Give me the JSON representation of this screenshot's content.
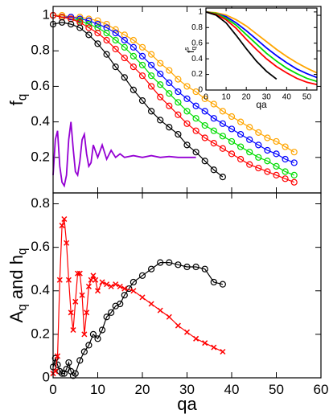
{
  "chart_data": [
    {
      "type": "line",
      "xlim": [
        0,
        60
      ],
      "ylim": [
        0,
        1.05
      ],
      "xticks": [
        0,
        10,
        20,
        30,
        40,
        50,
        60
      ],
      "xtick_labels": false,
      "yticks": [
        0.2,
        0.4,
        0.6,
        0.8,
        1
      ],
      "ylabel": [
        {
          "text": "f"
        },
        {
          "text": "q",
          "sub": true
        }
      ],
      "x": [
        0,
        2,
        4,
        6,
        8,
        10,
        12,
        14,
        16,
        18,
        20,
        22,
        24,
        26,
        28,
        30,
        32,
        34,
        36,
        38,
        40,
        42,
        44,
        46,
        48,
        50,
        52,
        54
      ],
      "series": [
        {
          "color": "#ffa500",
          "marker": "circle",
          "values": [
            1.0,
            1.0,
            0.99,
            0.99,
            0.98,
            0.97,
            0.95,
            0.92,
            0.89,
            0.86,
            0.82,
            0.78,
            0.73,
            0.69,
            0.64,
            0.6,
            0.57,
            0.53,
            0.5,
            0.46,
            0.43,
            0.4,
            0.37,
            0.34,
            0.31,
            0.29,
            0.26,
            0.23
          ]
        },
        {
          "color": "#0000ff",
          "marker": "circle",
          "values": [
            1.0,
            0.99,
            0.99,
            0.98,
            0.97,
            0.95,
            0.93,
            0.9,
            0.86,
            0.82,
            0.77,
            0.72,
            0.67,
            0.62,
            0.57,
            0.53,
            0.49,
            0.46,
            0.42,
            0.39,
            0.36,
            0.33,
            0.3,
            0.27,
            0.24,
            0.22,
            0.19,
            0.17
          ]
        },
        {
          "color": "#00dd00",
          "marker": "circle",
          "values": [
            1.0,
            0.99,
            0.98,
            0.97,
            0.95,
            0.93,
            0.9,
            0.86,
            0.82,
            0.77,
            0.72,
            0.66,
            0.61,
            0.56,
            0.51,
            0.46,
            0.42,
            0.38,
            0.35,
            0.32,
            0.29,
            0.26,
            0.23,
            0.2,
            0.18,
            0.15,
            0.12,
            0.1
          ]
        },
        {
          "color": "#ff0000",
          "marker": "circle",
          "values": [
            1.0,
            0.99,
            0.98,
            0.96,
            0.93,
            0.9,
            0.86,
            0.81,
            0.76,
            0.71,
            0.66,
            0.6,
            0.54,
            0.49,
            0.44,
            0.39,
            0.35,
            0.31,
            0.28,
            0.25,
            0.22,
            0.19,
            0.16,
            0.14,
            0.12,
            0.1,
            0.08,
            0.06
          ]
        },
        {
          "color": "#000000",
          "marker": "circle",
          "values": [
            0.95,
            0.96,
            0.95,
            0.93,
            0.89,
            0.84,
            0.78,
            0.71,
            0.65,
            0.58,
            0.52,
            0.46,
            0.41,
            0.37,
            0.33,
            0.27,
            0.23,
            0.18,
            0.13,
            0.09,
            null,
            null,
            null,
            null,
            null,
            null,
            null,
            null
          ]
        },
        {
          "color": "#9400d3",
          "x": [
            0,
            0.5,
            1,
            1.5,
            2,
            2.5,
            3,
            3.5,
            4,
            4.5,
            5,
            5.5,
            6,
            6.5,
            7,
            7.5,
            8,
            8.5,
            9,
            10,
            11,
            12,
            13,
            14,
            15,
            16,
            18,
            20,
            22,
            24,
            26,
            28,
            30,
            32
          ],
          "values": [
            0.1,
            0.3,
            0.35,
            0.15,
            0.06,
            0.04,
            0.1,
            0.3,
            0.4,
            0.25,
            0.12,
            0.1,
            0.18,
            0.3,
            0.33,
            0.22,
            0.15,
            0.17,
            0.27,
            0.2,
            0.27,
            0.19,
            0.24,
            0.2,
            0.22,
            0.2,
            0.21,
            0.2,
            0.21,
            0.2,
            0.205,
            0.2,
            0.2,
            0.2
          ]
        }
      ]
    },
    {
      "type": "line",
      "xlim": [
        0,
        60
      ],
      "ylim": [
        0,
        0.85
      ],
      "xticks": [
        0,
        10,
        20,
        30,
        40,
        50,
        60
      ],
      "yticks": [
        0,
        0.2,
        0.4,
        0.6,
        0.8
      ],
      "xlabel": "qa",
      "ylabel": [
        {
          "text": "A"
        },
        {
          "text": "q",
          "sub": true
        },
        {
          "text": " and h"
        },
        {
          "text": "q",
          "sub": true
        }
      ],
      "series": [
        {
          "color": "#000000",
          "marker": "circle",
          "x": [
            0,
            0.5,
            1,
            1.5,
            2,
            2.5,
            3,
            3.5,
            4,
            4.5,
            5,
            6,
            7,
            8,
            9,
            10,
            11,
            12,
            13,
            14,
            15,
            16,
            17,
            18,
            20,
            22,
            24,
            26,
            28,
            30,
            32,
            34,
            36,
            38
          ],
          "values": [
            0.05,
            0.09,
            0.06,
            0.03,
            0.02,
            0.02,
            0.04,
            0.07,
            0.03,
            0.01,
            0.02,
            0.08,
            0.12,
            0.15,
            0.2,
            0.18,
            0.22,
            0.28,
            0.3,
            0.33,
            0.34,
            0.38,
            0.41,
            0.44,
            0.47,
            0.5,
            0.53,
            0.53,
            0.52,
            0.51,
            0.51,
            0.5,
            0.44,
            0.43
          ]
        },
        {
          "color": "#ff0000",
          "marker": "cross",
          "x": [
            0,
            0.5,
            1,
            1.5,
            2,
            2.5,
            3,
            3.5,
            4,
            4.5,
            5,
            5.5,
            6,
            6.5,
            7,
            7.5,
            8,
            8.5,
            9,
            9.5,
            10,
            11,
            12,
            13,
            14,
            15,
            16,
            18,
            20,
            22,
            24,
            26,
            28,
            30,
            32,
            34,
            36,
            38
          ],
          "values": [
            0.02,
            0.03,
            0.1,
            0.45,
            0.7,
            0.73,
            0.62,
            0.45,
            0.3,
            0.22,
            0.35,
            0.48,
            0.48,
            0.38,
            0.2,
            0.3,
            0.42,
            0.45,
            0.47,
            0.45,
            0.4,
            0.44,
            0.43,
            0.42,
            0.43,
            0.42,
            0.41,
            0.4,
            0.37,
            0.34,
            0.31,
            0.28,
            0.24,
            0.21,
            0.18,
            0.16,
            0.14,
            0.12
          ]
        }
      ]
    },
    {
      "type": "line",
      "xlim": [
        0,
        55
      ],
      "ylim": [
        0,
        1.05
      ],
      "xticks": [
        0,
        10,
        20,
        30,
        40,
        50
      ],
      "yticks": [
        0,
        0.2,
        0.4,
        0.6,
        0.8,
        1
      ],
      "xlabel": "qa",
      "ylabel": [
        {
          "text": "f"
        },
        {
          "text": "q",
          "sub": true
        },
        {
          "text": "s",
          "sup": true
        }
      ],
      "x": [
        0,
        5,
        10,
        15,
        20,
        25,
        30,
        35,
        40,
        45,
        50,
        55
      ],
      "series": [
        {
          "color": "#ffa500",
          "values": [
            1,
            0.99,
            0.96,
            0.9,
            0.82,
            0.72,
            0.62,
            0.52,
            0.43,
            0.35,
            0.28,
            0.22
          ]
        },
        {
          "color": "#0000ff",
          "values": [
            1,
            0.98,
            0.94,
            0.86,
            0.76,
            0.65,
            0.54,
            0.44,
            0.35,
            0.27,
            0.21,
            0.16
          ]
        },
        {
          "color": "#00dd00",
          "values": [
            1,
            0.98,
            0.92,
            0.83,
            0.71,
            0.59,
            0.47,
            0.37,
            0.28,
            0.21,
            0.15,
            0.11
          ]
        },
        {
          "color": "#ff0000",
          "values": [
            1,
            0.97,
            0.9,
            0.79,
            0.65,
            0.52,
            0.4,
            0.3,
            0.22,
            0.15,
            0.1,
            0.07
          ]
        },
        {
          "color": "#000000",
          "values": [
            1,
            0.96,
            0.86,
            0.7,
            0.53,
            0.37,
            0.24,
            0.14,
            null,
            null,
            null,
            null
          ]
        }
      ]
    }
  ]
}
